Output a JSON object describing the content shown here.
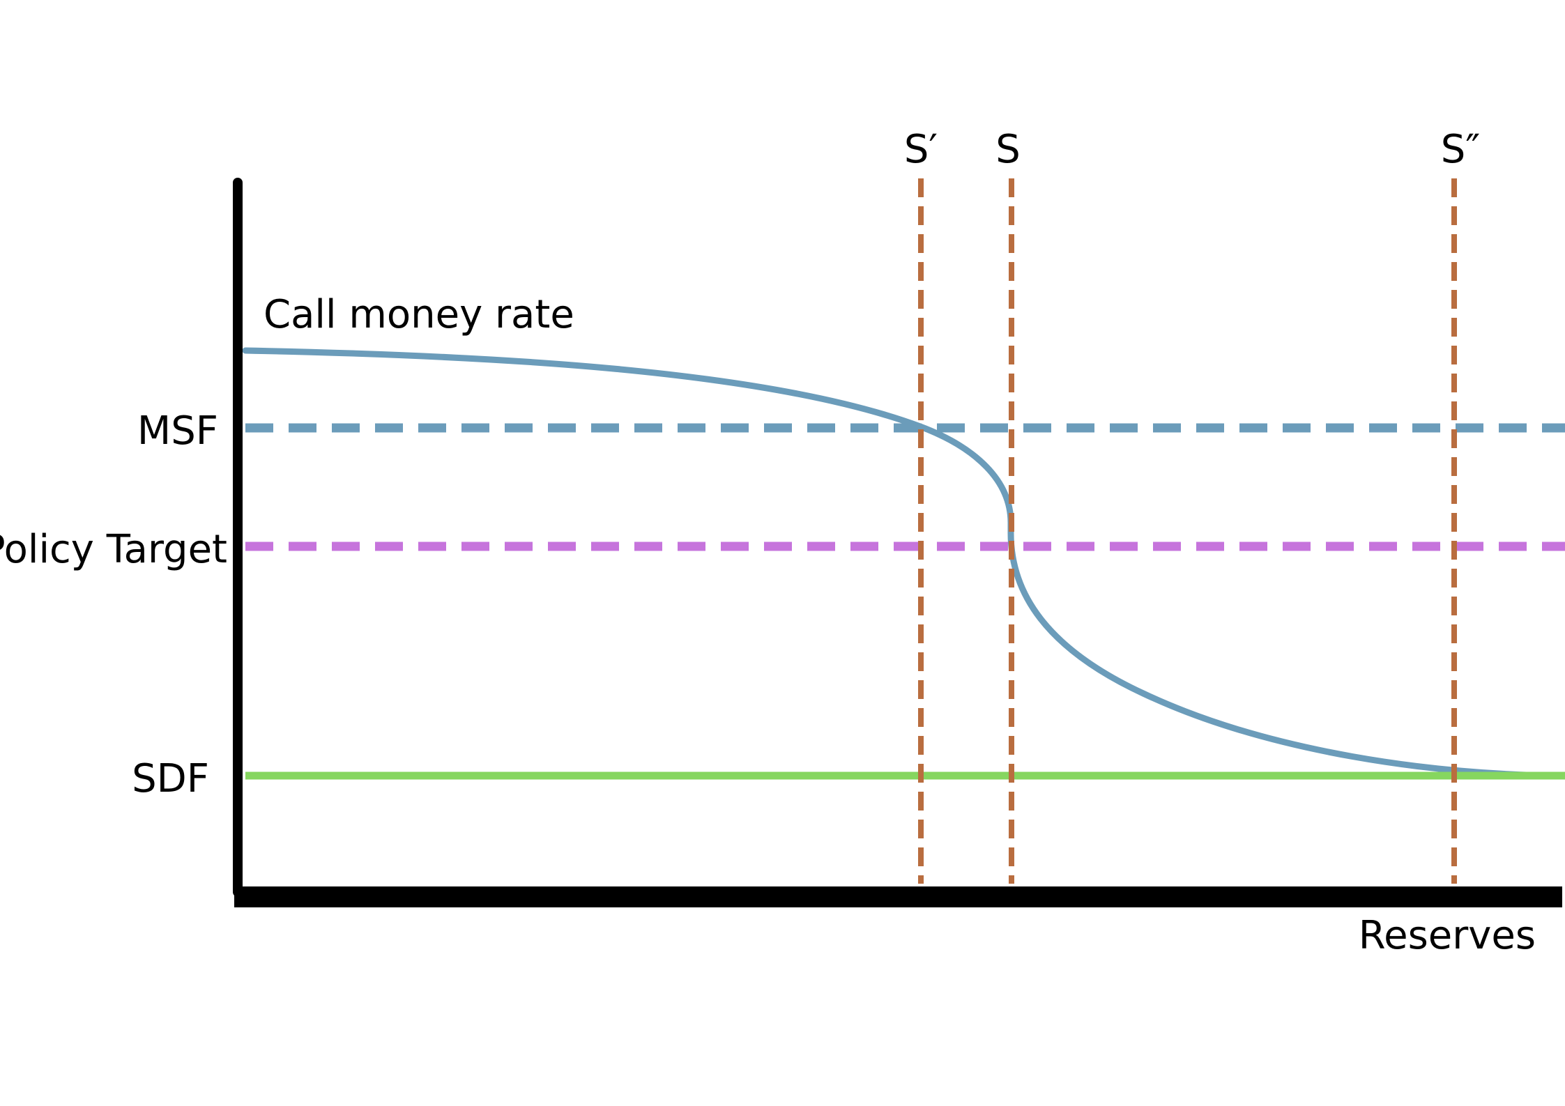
{
  "diagram": {
    "y_axis_label": "Call money rate",
    "x_axis_label": "Reserves",
    "rate_levels": [
      {
        "name": "MSF",
        "label": "MSF",
        "color": "#6b9cba",
        "style": "dashed"
      },
      {
        "name": "policy-target",
        "label": "Policy Target",
        "color": "#c674dc",
        "style": "dashed"
      },
      {
        "name": "SDF",
        "label": "SDF",
        "color": "#86d65f",
        "style": "solid"
      }
    ],
    "supply_levels": [
      {
        "name": "s-prime",
        "label": "S′",
        "color": "#b96d3f",
        "style": "dashed"
      },
      {
        "name": "s",
        "label": "S",
        "color": "#b96d3f",
        "style": "dashed"
      },
      {
        "name": "s-double-prime",
        "label": "S″",
        "color": "#b96d3f",
        "style": "dashed"
      }
    ],
    "demand_curve": {
      "name": "reserve-demand-curve",
      "color": "#6b9cba"
    },
    "axis_color": "#000000"
  }
}
